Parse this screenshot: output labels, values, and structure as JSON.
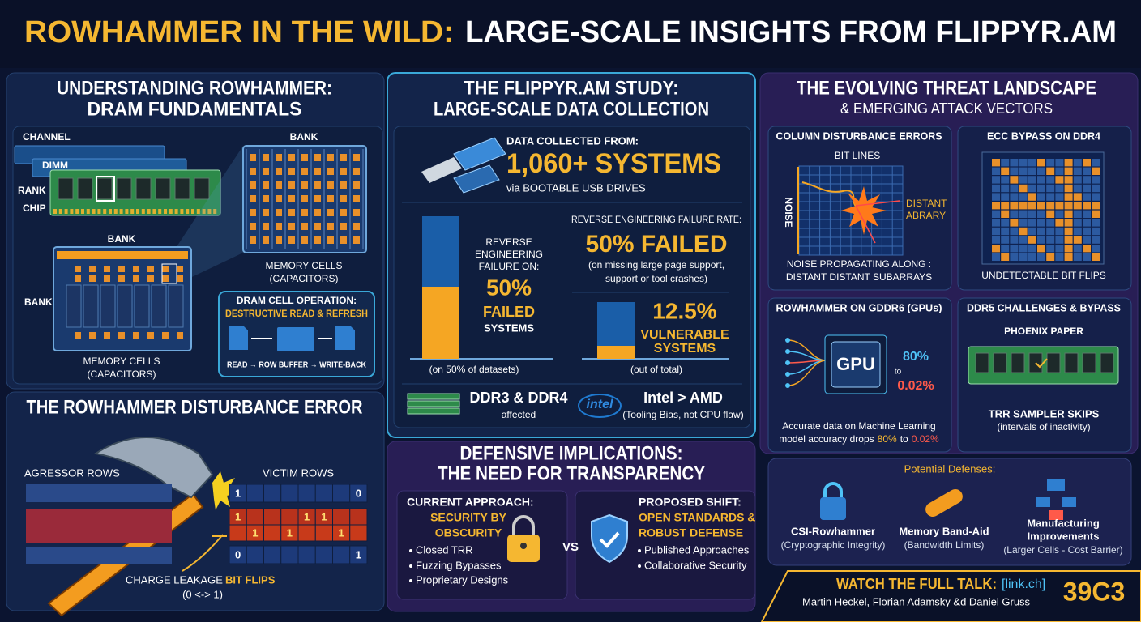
{
  "header": {
    "title_highlight": "ROWHAMMER IN THE WILD:",
    "title_rest": "LARGE-SCALE INSIGHTS FROM FLIPPYR.AM"
  },
  "dram": {
    "title": [
      "UNDERSTANDING ROWHAMMER:",
      "DRAM FUNDAMENTALS"
    ],
    "labels": {
      "channel": "CHANNEL",
      "dimm": "DIMM",
      "rank": "RANK",
      "chip": "CHIP",
      "bank_top": "BANK",
      "bank_mid": "BANK",
      "bank_left": "BANK",
      "cells_top": "MEMORY CELLS",
      "cells_top_note": "(CAPACITORS)",
      "cells_bottom": "MEMORY CELLS",
      "cells_bottom_note": "(CAPACITORS)"
    },
    "operation": {
      "title": "DRAM CELL OPERATION:",
      "subtitle": "DESTRUCTIVE READ & REFRESH",
      "flow": "READ → ROW BUFFER → WRITE-BACK"
    }
  },
  "disturbance": {
    "title": "THE ROWHAMMER DISTURBANCE ERROR",
    "aggressor": "AGRESSOR ROWS",
    "victim": "VICTIM ROWS",
    "bits": [
      [
        "1",
        "0"
      ],
      [
        "1",
        "1",
        "1"
      ],
      [
        "1",
        "1",
        "1"
      ],
      [
        "0",
        "1"
      ]
    ],
    "leakage": "CHARGE LEAKAGE →",
    "flips": "BIT FLIPS",
    "flip_note": "(0 <-> 1)"
  },
  "study": {
    "title": [
      "THE FLIPPYR.AM STUDY:",
      "LARGE-SCALE DATA COLLECTION"
    ],
    "collected": "DATA COLLECTED FROM:",
    "count": "1,060+ SYSTEMS",
    "via": "via BOOTABLE USB DRIVES",
    "left": {
      "heading": [
        "REVERSE",
        "ENGINEERING",
        "FAILURE ON:"
      ],
      "value": "50%",
      "failed": "FAILED",
      "systems": "SYSTEMS",
      "note": "(on 50% of datasets)"
    },
    "right": {
      "heading": "REVERSE ENGINEERING FAILURE RATE:",
      "value": "50% FAILED",
      "note": [
        "(on missing large page support,",
        "support or tool crashes)"
      ],
      "vulnerable_value": "12.5%",
      "vulnerable": "VULNERABLE",
      "systems": "SYSTEMS",
      "total_note": "(out of total)"
    },
    "ddr": "DDR3 & DDR4",
    "ddr_note": "affected",
    "intel_logo": "intel",
    "intel": "Intel > AMD",
    "intel_note": "(Tooling Bias, not CPU flaw)"
  },
  "defense": {
    "title": [
      "DEFENSIVE IMPLICATIONS:",
      "THE NEED FOR TRANSPARENCY"
    ],
    "current": {
      "heading": "CURRENT APPROACH:",
      "label": [
        "SECURITY BY",
        "OBSCURITY"
      ],
      "items": [
        "Closed TRR",
        "Fuzzing Bypasses",
        "Proprietary Designs"
      ]
    },
    "vs": "VS",
    "proposed": {
      "heading": "PROPOSED SHIFT:",
      "label": [
        "OPEN STANDARDS &",
        "ROBUST DEFENSE"
      ],
      "items": [
        "Published Approaches",
        "Collaborative Security"
      ]
    }
  },
  "threats": {
    "title": "THE EVOLVING THREAT LANDSCAPE",
    "subtitle": "& EMERGING ATTACK VECTORS",
    "column": {
      "title": "COLUMN DISTURBANCE ERRORS",
      "bit_lines": "BIT LINES",
      "noise": "NOISE",
      "distant": [
        "DISTANT",
        "ABRARY"
      ],
      "caption": [
        "NOISE PROPAGATING ALONG :",
        "DISTANT DISTANT SUBARRAYS"
      ]
    },
    "ecc": {
      "title": "ECC BYPASS ON DDR4",
      "caption": "UNDETECTABLE BIT FLIPS"
    },
    "gpu": {
      "title": "ROWHAMMER ON GDDR6 (GPUs)",
      "chip": "GPU",
      "from": "80%",
      "to": "to",
      "drop": "0.02%",
      "caption": "Accurate data on Machine Learning",
      "caption2": [
        "model accuracy drops",
        "80%",
        "to",
        "0.02%"
      ]
    },
    "ddr5": {
      "title": "DDR5 CHALLENGES & BYPASS",
      "paper": "PHOENIX PAPER",
      "skips": "TRR SAMPLER SKIPS",
      "skips_note": "(intervals of inactivity)"
    },
    "defenses": {
      "title": "Potential Defenses:",
      "items": [
        {
          "name": "CSI-Rowhammer",
          "note": "(Cryptographic Integrity)"
        },
        {
          "name": "Memory Band-Aid",
          "note": "(Bandwidth Limits)"
        },
        {
          "name": [
            "Manufacturing",
            "Improvements"
          ],
          "note": "(Larger Cells - Cost Barrier)"
        }
      ]
    }
  },
  "footer": {
    "watch": "WATCH THE FULL TALK:",
    "link": "[link.ch]",
    "speakers": "Martin Heckel, Florian Adamsky &d Daniel Gruss",
    "event": "39C3"
  }
}
